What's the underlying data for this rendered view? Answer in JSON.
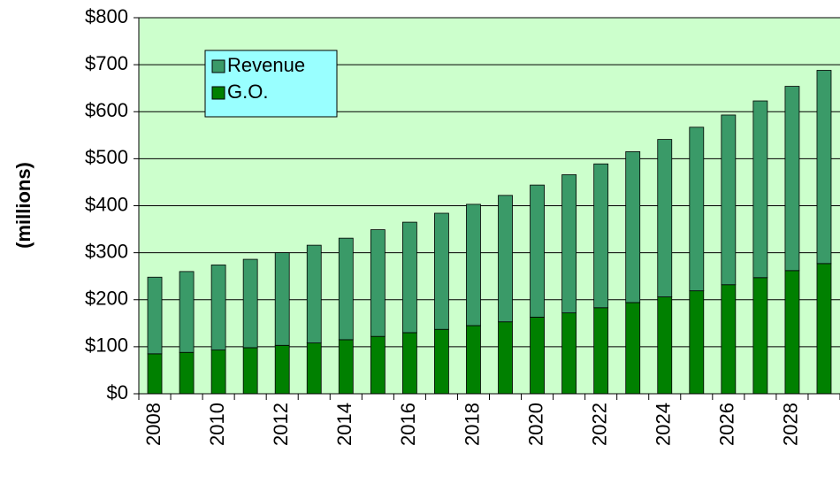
{
  "chart_data": {
    "type": "stacked_bar",
    "y_label": "(millions)",
    "categories": [
      "2008",
      null,
      "2010",
      null,
      "2012",
      null,
      "2014",
      null,
      "2016",
      null,
      "2018",
      null,
      "2020",
      null,
      "2022",
      null,
      "2024",
      null,
      "2026",
      null,
      "2028",
      null
    ],
    "series": [
      {
        "name": "G.O.",
        "color": "#008000",
        "values": [
          85,
          88,
          93,
          98,
          103,
          108,
          115,
          122,
          130,
          137,
          145,
          153,
          163,
          172,
          183,
          194,
          206,
          219,
          232,
          247,
          262,
          277
        ]
      },
      {
        "name": "Revenue",
        "color": "#3a9a68",
        "values": [
          163,
          172,
          181,
          188,
          197,
          208,
          216,
          227,
          235,
          247,
          258,
          269,
          281,
          294,
          306,
          321,
          335,
          348,
          361,
          376,
          392,
          411
        ]
      }
    ],
    "ylim": [
      0,
      800
    ],
    "yticks": [
      {
        "value": 0,
        "label": "$0"
      },
      {
        "value": 100,
        "label": "$100"
      },
      {
        "value": 200,
        "label": "$200"
      },
      {
        "value": 300,
        "label": "$300"
      },
      {
        "value": 400,
        "label": "$400"
      },
      {
        "value": 500,
        "label": "$500"
      },
      {
        "value": 600,
        "label": "$600"
      },
      {
        "value": 700,
        "label": "$700"
      },
      {
        "value": 800,
        "label": "$800"
      }
    ],
    "grid": true,
    "legend": "top-left",
    "plot_background": "#ccffcc",
    "legend_background": "#99ffff"
  }
}
